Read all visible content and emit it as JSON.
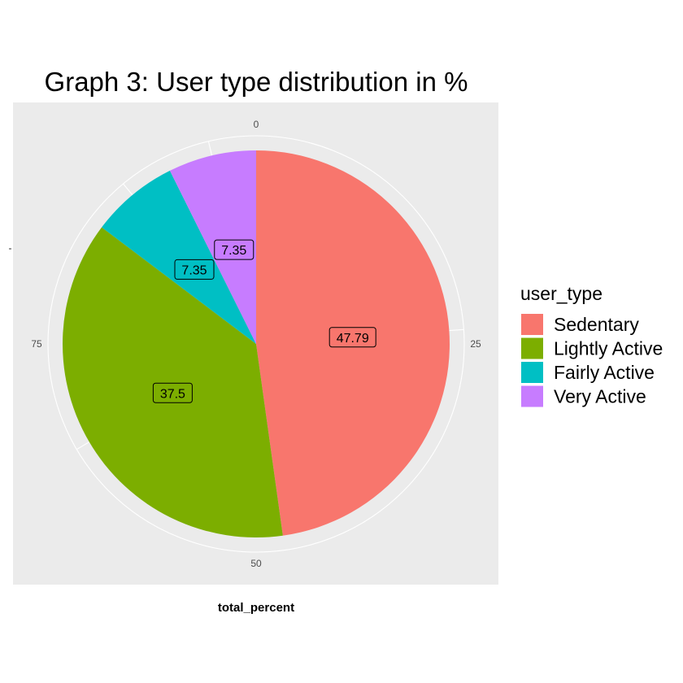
{
  "chart_data": {
    "type": "pie",
    "title": "Graph 3: User type distribution in %",
    "xlabel": "total_percent",
    "ylabel": "",
    "legend": {
      "title": "user_type",
      "position": "right"
    },
    "theta_ticks": [
      "0",
      "25",
      "50",
      "75"
    ],
    "theta_range": [
      0,
      100
    ],
    "slices": [
      {
        "label": "Sedentary",
        "value": 47.79,
        "color": "#F8766D"
      },
      {
        "label": "Lightly Active",
        "value": 37.5,
        "color": "#7CAE00"
      },
      {
        "label": "Fairly Active",
        "value": 7.35,
        "color": "#00BFC4"
      },
      {
        "label": "Very Active",
        "value": 7.35,
        "color": "#C77CFF"
      }
    ],
    "panel_background": "#EBEBEB",
    "grid": true
  }
}
